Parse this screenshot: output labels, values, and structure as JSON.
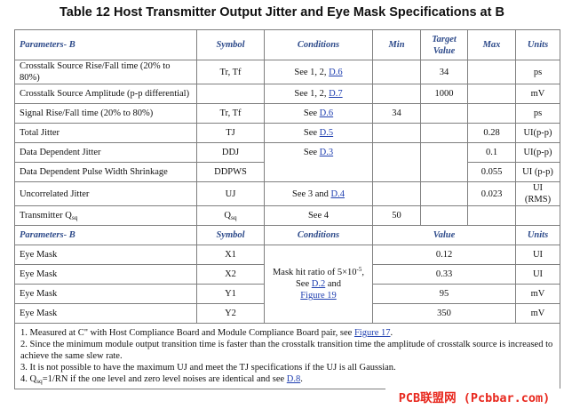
{
  "title": "Table 12  Host Transmitter Output Jitter and Eye Mask Specifications at B",
  "header1": [
    "Parameters- B",
    "Symbol",
    "Conditions",
    "Min",
    "Target Value",
    "Max",
    "Units"
  ],
  "rows1": [
    {
      "param": "Crosstalk Source Rise/Fall time (20% to 80%)",
      "symbol": "Tr, Tf",
      "cond_pre": "See 1, 2, ",
      "cond_link": "D.6",
      "min": "",
      "target": "34",
      "max": "",
      "units": "ps"
    },
    {
      "param": "Crosstalk Source Amplitude (p-p differential)",
      "symbol": "",
      "cond_pre": "See 1, 2, ",
      "cond_link": "D.7",
      "min": "",
      "target": "1000",
      "max": "",
      "units": "mV"
    },
    {
      "param": "Signal Rise/Fall time (20% to 80%)",
      "symbol": "Tr, Tf",
      "cond_pre": "See ",
      "cond_link": "D.6",
      "min": "34",
      "target": "",
      "max": "",
      "units": "ps"
    },
    {
      "param": "Total Jitter",
      "symbol": "TJ",
      "cond_pre": "See ",
      "cond_link": "D.5",
      "min": "",
      "target": "",
      "max": "0.28",
      "units": "UI(p-p)"
    },
    {
      "param": "Data Dependent Jitter",
      "symbol": "DDJ",
      "cond_pre": "See ",
      "cond_link": "D.3",
      "min": "",
      "target": "",
      "max": "0.1",
      "units": "UI(p-p)"
    },
    {
      "param": "Data Dependent Pulse Width Shrinkage",
      "symbol": "DDPWS",
      "cond_pre": "",
      "cond_link": "",
      "min": "",
      "target": "",
      "max": "0.055",
      "units": "UI (p-p)"
    },
    {
      "param": "Uncorrelated Jitter",
      "symbol": "UJ",
      "cond_pre": "See 3 and ",
      "cond_link": "D.4",
      "min": "",
      "target": "",
      "max": "0.023",
      "units": "UI (RMS)"
    },
    {
      "param": "Transmitter Q",
      "param_sub": "sq",
      "symbol": "Q",
      "symbol_sub": "sq",
      "cond_pre": "See 4",
      "cond_link": "",
      "min": "50",
      "target": "",
      "max": "",
      "units": ""
    }
  ],
  "header2": [
    "Parameters- B",
    "Symbol",
    "Conditions",
    "Value",
    "Units"
  ],
  "rows2": [
    {
      "param": "Eye Mask",
      "symbol": "X1",
      "value": "0.12",
      "units": "UI"
    },
    {
      "param": "Eye Mask",
      "symbol": "X2",
      "value": "0.33",
      "units": "UI"
    },
    {
      "param": "Eye Mask",
      "symbol": "Y1",
      "value": "95",
      "units": "mV"
    },
    {
      "param": "Eye Mask",
      "symbol": "Y2",
      "value": "350",
      "units": "mV"
    }
  ],
  "mask_cond": {
    "line1": "Mask hit ratio of 5×10",
    "exp": "-5",
    "line1_end": ",",
    "line2_pre": "See ",
    "link1": "D.2",
    "line2_post": " and",
    "link2": "Figure 19"
  },
  "notes": {
    "n1_pre": "1. Measured at C\" with Host Compliance Board and Module Compliance Board pair, see ",
    "n1_link": "Figure 17",
    "n1_post": ".",
    "n2": "2. Since the minimum module output transition time is faster than the crosstalk transition time the amplitude of crosstalk source is increased to achieve the same slew rate.",
    "n3": "3. It is not possible to have the maximum UJ and meet the TJ specifications if the UJ is all Gaussian.",
    "n4_pre": "4. Q",
    "n4_sub": "sq",
    "n4_mid": "=1/RN if the one level and zero level noises are identical and see ",
    "n4_link": "D.8",
    "n4_post": "."
  },
  "watermark": "PCB联盟网 (Pcbbar.com)"
}
